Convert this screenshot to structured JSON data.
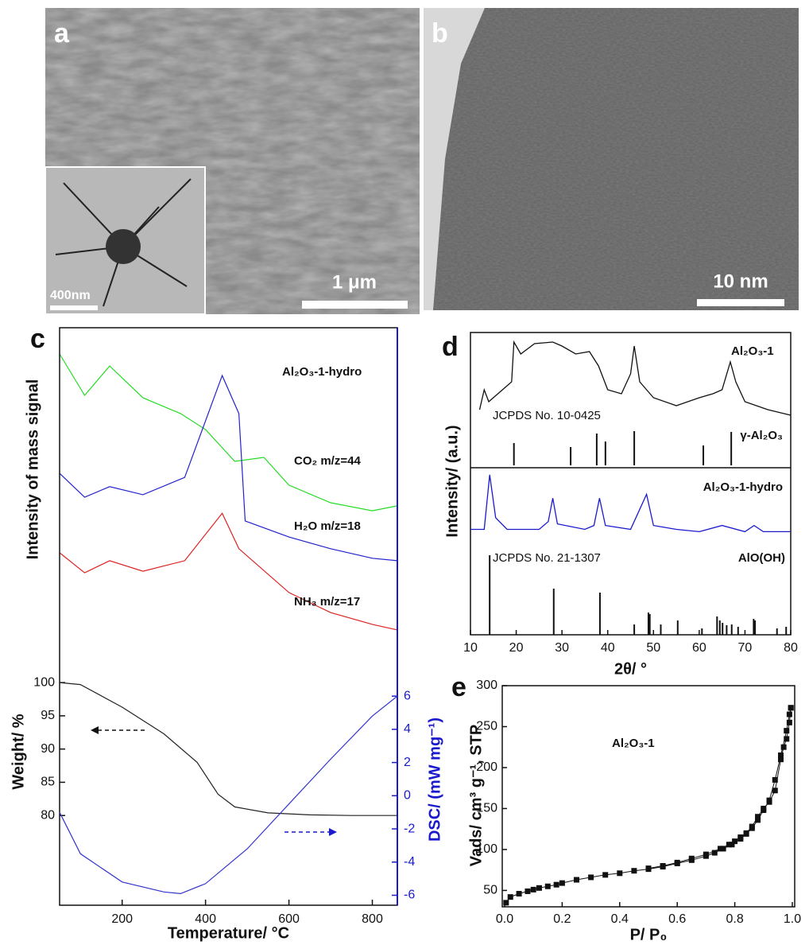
{
  "panels": {
    "a": {
      "label": "a",
      "scale_bar": "1 μm",
      "inset_scale_bar": "400nm"
    },
    "b": {
      "label": "b",
      "scale_bar": "10 nm"
    }
  },
  "chart_data": [
    {
      "type": "line",
      "panel_label": "c",
      "y_label": "Intensity of mass signal",
      "annotation": "Al₂O₃-1-hydro",
      "xlim": [
        50,
        860
      ],
      "ylim": [
        0,
        100
      ],
      "series": [
        {
          "name": "CO₂ m/z=44",
          "color": "#22dd22",
          "x": [
            50,
            110,
            170,
            250,
            340,
            400,
            470,
            540,
            600,
            700,
            800,
            860
          ],
          "values": [
            91.5,
            78.1,
            87.6,
            77.3,
            72.2,
            67.0,
            56.7,
            58.0,
            49.0,
            43.3,
            40.7,
            42.3
          ]
        },
        {
          "name": "H₂O m/z=18",
          "color": "#2222cc",
          "x": [
            50,
            110,
            170,
            250,
            350,
            440,
            480,
            495,
            600,
            700,
            800,
            860
          ],
          "values": [
            52.8,
            45.1,
            48.5,
            45.9,
            51.5,
            84.5,
            72.2,
            37.4,
            32.2,
            28.4,
            25.3,
            24.5
          ]
        },
        {
          "name": "NH₃ m/z=17",
          "color": "#dd2222",
          "x": [
            50,
            110,
            170,
            250,
            350,
            440,
            480,
            600,
            700,
            800,
            860
          ],
          "values": [
            27.1,
            20.6,
            24.5,
            21.1,
            24.5,
            39.9,
            28.4,
            14.2,
            7.7,
            3.9,
            2.1
          ]
        }
      ]
    },
    {
      "type": "line",
      "x_label": "Temperature/ °C",
      "y_label": "Weight/ %",
      "y2_label": "DSC/ (mW mg⁻¹)",
      "xlim": [
        50,
        860
      ],
      "xticks": [
        200,
        400,
        600,
        800
      ],
      "ylim": [
        66.5,
        153.4
      ],
      "yticks": [
        80,
        85,
        90,
        95,
        100
      ],
      "y2lim": [
        -6.6,
        28.2
      ],
      "y2ticks": [
        -6,
        -4,
        -2,
        0,
        2,
        4,
        6
      ],
      "y2color": "#1a1acc",
      "series": [
        {
          "color": "#222222",
          "x": [
            50,
            100,
            200,
            300,
            380,
            430,
            470,
            550,
            650,
            750,
            860
          ],
          "values": [
            100,
            99.7,
            96.3,
            92.3,
            88,
            83.2,
            81.3,
            80.4,
            80.1,
            80,
            80
          ]
        },
        {
          "color": "#3333cc",
          "axis": "y2",
          "x": [
            50,
            100,
            200,
            300,
            340,
            400,
            500,
            600,
            700,
            800,
            860
          ],
          "values": [
            -1,
            -3.5,
            -5.2,
            -5.8,
            -5.9,
            -5.3,
            -3.2,
            -0.5,
            2.2,
            4.8,
            6
          ]
        }
      ]
    },
    {
      "type": "line",
      "panel_label": "d",
      "x_label": "2θ/ °",
      "y_label": "Intensity/ (a.u.)",
      "xlim": [
        10,
        80
      ],
      "xticks": [
        10,
        20,
        30,
        40,
        50,
        60,
        70,
        80
      ],
      "ylim": [
        0,
        100
      ],
      "series": [
        {
          "name": "Al₂O₃-1",
          "color": "#111111",
          "x": [
            12,
            13,
            14,
            17,
            19,
            19.5,
            21,
            24,
            28,
            30,
            33,
            36,
            38,
            40,
            43,
            45,
            45.8,
            47,
            50,
            55,
            60,
            63,
            65,
            66.8,
            68,
            70,
            75,
            80
          ],
          "values": [
            9.3,
            32.7,
            18.7,
            32.7,
            42.1,
            88.8,
            74.8,
            86.9,
            88.8,
            84.1,
            74.8,
            77.6,
            60.7,
            32.7,
            28.0,
            51.4,
            84.1,
            42.1,
            23.4,
            14.0,
            23.4,
            28.0,
            32.7,
            65.4,
            42.1,
            18.7,
            9.3,
            2.8
          ]
        },
        {
          "name": "γ-Al₂O₃",
          "annotation": "JCPDS No. 10-0425",
          "style": "stick",
          "color": "#111111",
          "x": [
            19.5,
            31.9,
            37.6,
            39.5,
            45.8,
            60.9,
            67
          ],
          "values": [
            46.7,
            38.3,
            66.7,
            50,
            71.7,
            41.7,
            70
          ]
        },
        {
          "name": "Al₂O₃-1-hydro",
          "color": "#1a1acc",
          "x": [
            10,
            13,
            14.2,
            15.5,
            18,
            25,
            27,
            28,
            29,
            35,
            37,
            38.2,
            39.5,
            45,
            48.5,
            50,
            55,
            60,
            65,
            70,
            72,
            74,
            80
          ],
          "values": [
            25,
            25,
            95,
            40,
            25,
            25,
            35,
            65,
            32,
            25,
            30,
            65,
            30,
            25,
            70,
            30,
            25,
            22,
            30,
            22,
            30,
            22,
            22
          ]
        },
        {
          "name": "AlO(OH)",
          "annotation": "JCPDS No. 21-1307",
          "style": "stick",
          "color": "#111111",
          "x": [
            14.2,
            28.2,
            38.3,
            45.8,
            48.9,
            49.2,
            51.6,
            55.3,
            60.6,
            63.9,
            64.5,
            65.1,
            66,
            67.1,
            68.5,
            71.9,
            72.2,
            77,
            79
          ],
          "values": [
            92.6,
            53.7,
            49.1,
            12.0,
            25.9,
            24.1,
            12.0,
            16.7,
            7.4,
            21.3,
            16.7,
            13.9,
            11.1,
            12.0,
            9.3,
            18.5,
            16.7,
            7.4,
            9.3
          ]
        }
      ]
    },
    {
      "type": "line",
      "panel_label": "e",
      "annotation": "Al₂O₃-1",
      "x_label": "P/ P₀",
      "y_label": "Vads/ cm³ g⁻¹, STP",
      "marker": "square",
      "xlim": [
        0,
        1.0
      ],
      "xticks": [
        {
          "value": 0,
          "label": "0.0"
        },
        0.2,
        0.4,
        0.6,
        0.8,
        {
          "value": 1,
          "label": "1.0"
        }
      ],
      "ylim": [
        30,
        300
      ],
      "yticks": [
        50,
        100,
        150,
        200,
        250,
        300
      ],
      "series": [
        {
          "color": "#111111",
          "x": [
            0.005,
            0.02,
            0.05,
            0.08,
            0.1,
            0.12,
            0.15,
            0.18,
            0.2,
            0.25,
            0.3,
            0.35,
            0.4,
            0.45,
            0.5,
            0.55,
            0.6,
            0.65,
            0.7,
            0.73,
            0.76,
            0.79,
            0.82,
            0.84,
            0.86,
            0.88,
            0.9,
            0.92,
            0.94,
            0.96,
            0.98,
            0.99,
            0.995
          ],
          "values": [
            35,
            42,
            46,
            49,
            51,
            53,
            55,
            57,
            59,
            63,
            66,
            69,
            71,
            74,
            76,
            79,
            83,
            87,
            92,
            96,
            101,
            106,
            113,
            119,
            126,
            136,
            148,
            160,
            185,
            215,
            245,
            265,
            273
          ]
        },
        {
          "color": "#111111",
          "x": [
            0.995,
            0.99,
            0.98,
            0.97,
            0.96,
            0.94,
            0.92,
            0.9,
            0.88,
            0.86,
            0.84,
            0.82,
            0.8,
            0.78,
            0.75,
            0.7,
            0.65,
            0.6,
            0.55,
            0.5
          ],
          "values": [
            273,
            255,
            235,
            225,
            210,
            172,
            158,
            150,
            140,
            128,
            120,
            115,
            110,
            106,
            101,
            94,
            89,
            84,
            80,
            77
          ]
        }
      ]
    }
  ]
}
